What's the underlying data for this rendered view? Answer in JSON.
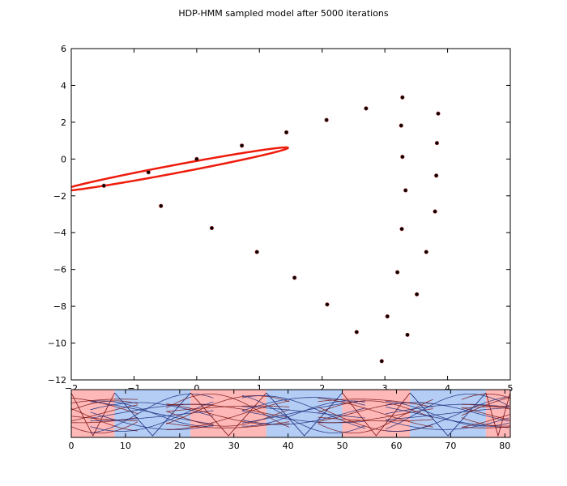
{
  "figure": {
    "title": "HDP-HMM sampled model after 5000 iterations"
  },
  "chart_data": [
    {
      "type": "scatter",
      "title": "HDP-HMM sampled model after 5000 iterations",
      "xlabel": "",
      "ylabel": "",
      "xlim": [
        -2,
        5
      ],
      "ylim": [
        -12,
        6
      ],
      "xticks": [
        -2,
        -1,
        0,
        1,
        2,
        3,
        4,
        5
      ],
      "yticks": [
        -12,
        -10,
        -8,
        -6,
        -4,
        -2,
        0,
        2,
        4,
        6
      ],
      "grid": false,
      "points": {
        "x": [
          -1.48,
          -0.77,
          -0.57,
          0.0,
          0.24,
          0.72,
          0.96,
          1.43,
          1.56,
          2.07,
          2.08,
          2.55,
          2.7,
          2.95,
          3.04,
          3.2,
          3.26,
          3.27,
          3.28,
          3.28,
          3.33,
          3.36,
          3.51,
          3.66,
          3.8,
          3.82,
          3.83,
          3.85
        ],
        "y": [
          -1.45,
          -0.72,
          -2.55,
          0.0,
          -3.75,
          0.73,
          -5.05,
          1.45,
          -6.45,
          2.12,
          -7.9,
          -9.4,
          2.75,
          -10.98,
          -8.55,
          -6.15,
          1.82,
          -3.8,
          0.12,
          3.35,
          -1.7,
          -9.55,
          -7.35,
          -5.05,
          -2.85,
          -0.9,
          0.87,
          2.47
        ],
        "color": "#000000",
        "edge_color": "#c03030"
      },
      "ellipse": {
        "center": [
          -0.35,
          -0.55
        ],
        "semi_axes": [
          2.15,
          0.19
        ],
        "angle_deg": 33,
        "color": "#ee1c0c"
      }
    },
    {
      "type": "line",
      "xlim": [
        0,
        81
      ],
      "xticks": [
        0,
        10,
        20,
        30,
        40,
        50,
        60,
        70,
        80
      ],
      "state_segments": [
        {
          "start": 0,
          "end": 8,
          "state": "red"
        },
        {
          "start": 8,
          "end": 22,
          "state": "blue"
        },
        {
          "start": 22,
          "end": 36,
          "state": "red"
        },
        {
          "start": 36,
          "end": 50,
          "state": "blue"
        },
        {
          "start": 50,
          "end": 62.5,
          "state": "red"
        },
        {
          "start": 62.5,
          "end": 76.5,
          "state": "blue"
        },
        {
          "start": 76.5,
          "end": 81,
          "state": "red"
        }
      ],
      "state_colors": {
        "red": "#ffb8b8",
        "blue": "#b3cdf5"
      },
      "series_colors": {
        "red": "#7a1010",
        "blue": "#1a2a7a"
      },
      "series_count": 8
    }
  ]
}
